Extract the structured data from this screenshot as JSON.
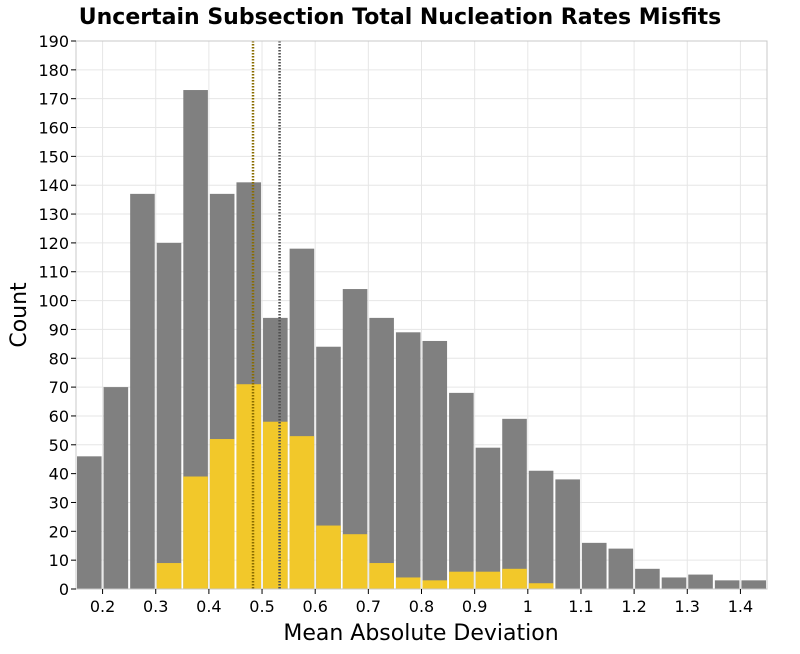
{
  "chart_data": {
    "type": "bar",
    "title": "Uncertain Subsection Total Nucleation Rates Misfits",
    "xlabel": "Mean Absolute Deviation",
    "ylabel": "Count",
    "xlim": [
      0.15,
      1.45
    ],
    "ylim": [
      0,
      190
    ],
    "grid": true,
    "bin_width": 0.05,
    "x": [
      0.175,
      0.225,
      0.275,
      0.325,
      0.375,
      0.425,
      0.475,
      0.525,
      0.575,
      0.625,
      0.675,
      0.725,
      0.775,
      0.825,
      0.875,
      0.925,
      0.975,
      1.025,
      1.075,
      1.125,
      1.175,
      1.225,
      1.275,
      1.325,
      1.375,
      1.425
    ],
    "series": [
      {
        "color": "#808080",
        "values": [
          46,
          70,
          137,
          120,
          173,
          137,
          141,
          94,
          118,
          84,
          104,
          94,
          89,
          86,
          68,
          49,
          59,
          41,
          38,
          16,
          14,
          7,
          4,
          5,
          3,
          3
        ]
      },
      {
        "color": "#f2c82a",
        "values": [
          0,
          0,
          0,
          9,
          39,
          52,
          71,
          58,
          53,
          22,
          19,
          9,
          4,
          3,
          6,
          6,
          7,
          2,
          0,
          0,
          0,
          0,
          0,
          0,
          0,
          0
        ]
      }
    ],
    "vlines": [
      {
        "x": 0.483,
        "color": "#8a6d00",
        "style": "dotted"
      },
      {
        "x": 0.533,
        "color": "#505050",
        "style": "dotted"
      }
    ],
    "xticks": [
      "0.2",
      "0.3",
      "0.4",
      "0.5",
      "0.6",
      "0.7",
      "0.8",
      "0.9",
      "1",
      "1.1",
      "1.2",
      "1.3",
      "1.4"
    ],
    "xtick_values": [
      0.2,
      0.3,
      0.4,
      0.5,
      0.6,
      0.7,
      0.8,
      0.9,
      1.0,
      1.1,
      1.2,
      1.3,
      1.4
    ],
    "yticks": [
      "0",
      "10",
      "20",
      "30",
      "40",
      "50",
      "60",
      "70",
      "80",
      "90",
      "100",
      "110",
      "120",
      "130",
      "140",
      "150",
      "160",
      "170",
      "180",
      "190"
    ],
    "ytick_values": [
      0,
      10,
      20,
      30,
      40,
      50,
      60,
      70,
      80,
      90,
      100,
      110,
      120,
      130,
      140,
      150,
      160,
      170,
      180,
      190
    ]
  }
}
